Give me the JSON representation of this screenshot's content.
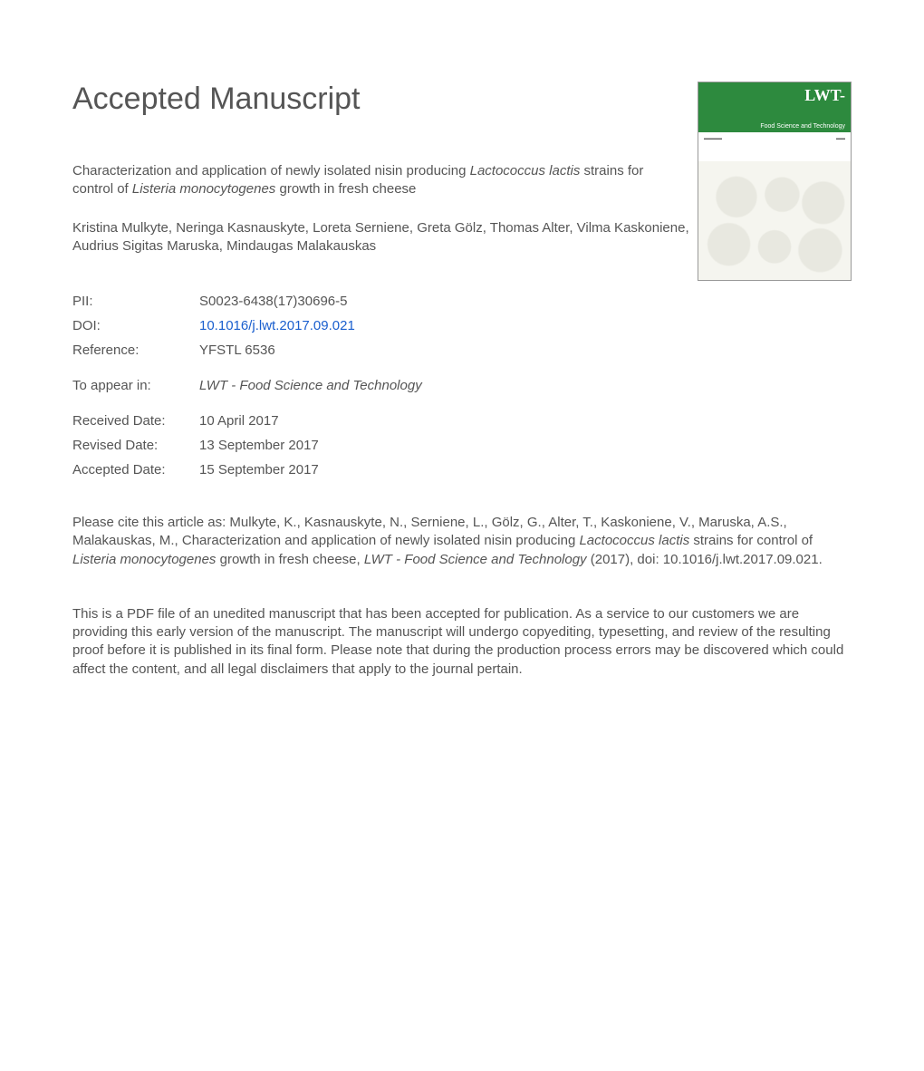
{
  "heading": "Accepted Manuscript",
  "cover": {
    "logo": "LWT-",
    "subtitle": "Food Science and Technology"
  },
  "title": {
    "prefix": "Characterization and application of newly isolated nisin producing ",
    "species1": "Lactococcus lactis",
    "mid": " strains for control of ",
    "species2": "Listeria monocytogenes",
    "suffix": " growth in fresh cheese"
  },
  "authors": "Kristina Mulkyte, Neringa Kasnauskyte, Loreta Serniene, Greta Gölz, Thomas Alter, Vilma Kaskoniene, Audrius Sigitas Maruska, Mindaugas Malakauskas",
  "meta": {
    "pii_label": "PII:",
    "pii_val": "S0023-6438(17)30696-5",
    "doi_label": "DOI:",
    "doi_val": "10.1016/j.lwt.2017.09.021",
    "ref_label": "Reference:",
    "ref_val": "YFSTL 6536",
    "appear_label": "To appear in:",
    "appear_val": "LWT - Food Science and Technology",
    "received_label": "Received Date:",
    "received_val": "10 April 2017",
    "revised_label": "Revised Date:",
    "revised_val": "13 September 2017",
    "accepted_label": "Accepted Date:",
    "accepted_val": "15 September 2017"
  },
  "citation": {
    "lead": "Please cite this article as: Mulkyte, K., Kasnauskyte, N., Serniene, L., Gölz, G., Alter, T., Kaskoniene, V., Maruska, A.S., Malakauskas, M., Characterization and application of newly isolated nisin producing ",
    "sp1": "Lactococcus lactis",
    "mid1": " strains for control of ",
    "sp2": "Listeria monocytogenes",
    "mid2": " growth in fresh cheese, ",
    "journal": "LWT - Food Science and Technology",
    "tail": " (2017), doi: 10.1016/j.lwt.2017.09.021."
  },
  "disclaimer": "This is a PDF file of an unedited manuscript that has been accepted for publication. As a service to our customers we are providing this early version of the manuscript. The manuscript will undergo copyediting, typesetting, and review of the resulting proof before it is published in its final form. Please note that during the production process errors may be discovered which could affect the content, and all legal disclaimers that apply to the journal pertain."
}
